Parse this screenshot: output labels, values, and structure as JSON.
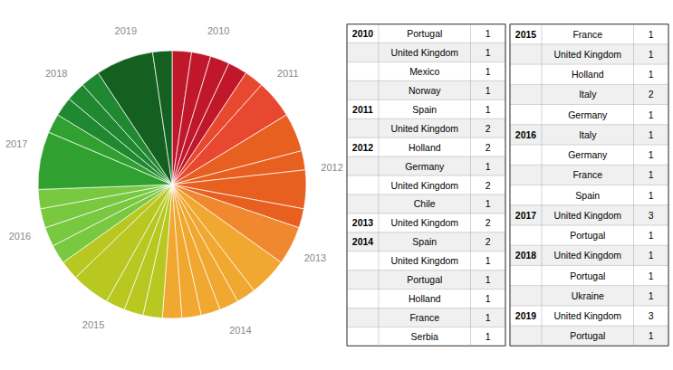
{
  "chart_data": {
    "type": "pie",
    "series": [
      {
        "name": "2010",
        "color": "#c0182a",
        "categories": [
          "Portugal",
          "United Kingdom",
          "Mexico",
          "Norway"
        ],
        "values": [
          1,
          1,
          1,
          1
        ]
      },
      {
        "name": "2011",
        "color": "#e84830",
        "categories": [
          "Spain",
          "United Kingdom"
        ],
        "values": [
          1,
          2
        ]
      },
      {
        "name": "2012",
        "color": "#e86020",
        "categories": [
          "Holland",
          "Germany",
          "United Kingdom",
          "Chile"
        ],
        "values": [
          2,
          1,
          2,
          1
        ]
      },
      {
        "name": "2013",
        "color": "#f08830",
        "categories": [
          "United Kingdom"
        ],
        "values": [
          2
        ]
      },
      {
        "name": "2014",
        "color": "#f0a830",
        "categories": [
          "Spain",
          "United Kingdom",
          "Portugal",
          "Holland",
          "France",
          "Serbia"
        ],
        "values": [
          2,
          1,
          1,
          1,
          1,
          1
        ]
      },
      {
        "name": "2015",
        "color": "#b8c820",
        "categories": [
          "France",
          "United Kingdom",
          "Holland",
          "Italy",
          "Germany"
        ],
        "values": [
          1,
          1,
          1,
          2,
          1
        ]
      },
      {
        "name": "2016",
        "color": "#78c840",
        "categories": [
          "Italy",
          "Germany",
          "France",
          "Spain"
        ],
        "values": [
          1,
          1,
          1,
          1
        ]
      },
      {
        "name": "2017",
        "color": "#30a030",
        "categories": [
          "United Kingdom",
          "Portugal"
        ],
        "values": [
          3,
          1
        ]
      },
      {
        "name": "2018",
        "color": "#208830",
        "categories": [
          "United Kingdom",
          "Portugal",
          "Ukraine"
        ],
        "values": [
          1,
          1,
          1
        ]
      },
      {
        "name": "2019",
        "color": "#146020",
        "categories": [
          "United Kingdom",
          "Portugal"
        ],
        "values": [
          3,
          1
        ]
      }
    ]
  }
}
